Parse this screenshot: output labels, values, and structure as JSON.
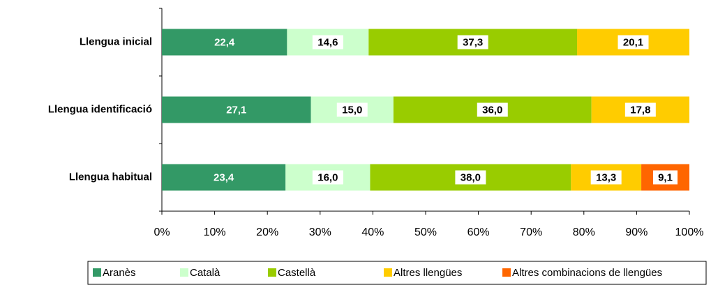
{
  "chart_data": {
    "type": "bar",
    "orientation": "horizontal",
    "stacked": "percent",
    "categories": [
      "Llengua inicial",
      "Llengua identificació",
      "Llengua habitual"
    ],
    "series": [
      {
        "name": "Aranès",
        "color": "#339966",
        "label_color": "#ffffff",
        "values": [
          22.4,
          27.1,
          23.4
        ],
        "value_labels": [
          "22,4",
          "27,1",
          "23,4"
        ]
      },
      {
        "name": "Català",
        "color": "#ccffcc",
        "label_color": "#000000",
        "values": [
          14.6,
          15.0,
          16.0
        ],
        "value_labels": [
          "14,6",
          "15,0",
          "16,0"
        ]
      },
      {
        "name": "Castellà",
        "color": "#99cc00",
        "label_color": "#000000",
        "values": [
          37.3,
          36.0,
          38.0
        ],
        "value_labels": [
          "37,3",
          "36,0",
          "38,0"
        ]
      },
      {
        "name": "Altres llengües",
        "color": "#ffcc00",
        "label_color": "#000000",
        "values": [
          20.1,
          17.8,
          13.3
        ],
        "value_labels": [
          "20,1",
          "17,8",
          "13,3"
        ]
      },
      {
        "name": "Altres combinacions de llengües",
        "color": "#ff6600",
        "label_color": "#000000",
        "values": [
          null,
          null,
          9.1
        ],
        "value_labels": [
          null,
          null,
          "9,1"
        ]
      }
    ],
    "xlim": [
      0,
      100
    ],
    "xticks": [
      {
        "value": 0,
        "label": "0%"
      },
      {
        "value": 10,
        "label": "10%"
      },
      {
        "value": 20,
        "label": "20%"
      },
      {
        "value": 30,
        "label": "30%"
      },
      {
        "value": 40,
        "label": "40%"
      },
      {
        "value": 50,
        "label": "50%"
      },
      {
        "value": 60,
        "label": "60%"
      },
      {
        "value": 70,
        "label": "70%"
      },
      {
        "value": 80,
        "label": "80%"
      },
      {
        "value": 90,
        "label": "90%"
      },
      {
        "value": 100,
        "label": "100%"
      }
    ],
    "legend": "bottom"
  }
}
